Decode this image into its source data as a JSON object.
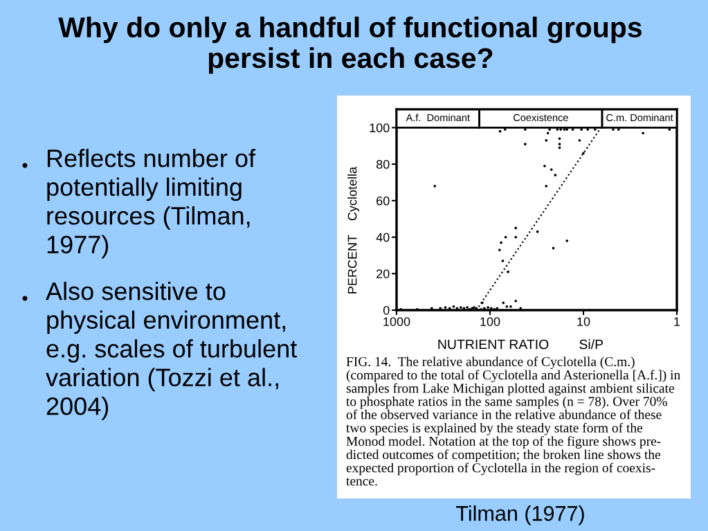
{
  "chart_data": {
    "type": "scatter",
    "title": "Why do only a handful of functional groups\npersist in each case?",
    "xlabel": "NUTRIENT RATIO        Si/P",
    "ylabel": "PERCENT    Cyclotella",
    "log": "x",
    "xlim": [
      1000,
      1
    ],
    "xticks": [
      1000,
      100,
      10,
      1
    ],
    "ylim": [
      0,
      110
    ],
    "yticks": [
      0,
      20,
      40,
      60,
      80,
      100
    ],
    "grid": false,
    "series": [
      {
        "color": "#000000",
        "marker": "circle",
        "x": [
          900,
          600,
          420,
          340,
          300,
          270,
          245,
          225,
          205,
          190,
          175,
          165,
          155,
          148,
          140,
          125,
          115,
          105,
          97,
          90,
          84,
          121,
          72,
          66,
          60,
          53,
          47,
          390,
          53,
          68,
          53,
          76,
          79,
          73,
          64,
          31,
          15,
          21,
          26,
          22,
          20,
          25,
          42,
          25,
          24,
          18,
          18,
          18,
          11,
          10,
          78,
          69,
          42,
          23,
          19,
          17.5,
          16,
          15,
          13,
          10.5,
          9,
          7.5,
          4.8,
          4.2,
          2.3,
          1.2
        ],
        "values": [
          0.5,
          0.5,
          1,
          1,
          1.5,
          1,
          2,
          1,
          1.5,
          1,
          1.5,
          0.5,
          1,
          1.5,
          1,
          0.5,
          1,
          1.5,
          1,
          0.5,
          1,
          4,
          4,
          2,
          2,
          5,
          1,
          68,
          45,
          40,
          40,
          37,
          33,
          27,
          21,
          43,
          38,
          34,
          79,
          77,
          74,
          68,
          91,
          93,
          97,
          94,
          91,
          89,
          93,
          86,
          98,
          99,
          99,
          99,
          99,
          99,
          99,
          99,
          99,
          99,
          99,
          99,
          99,
          99,
          97,
          99
        ]
      },
      {
        "type": "line",
        "color": "#000000",
        "line_style": "dotted",
        "x": [
          140,
          6.5
        ],
        "values": [
          0,
          100
        ]
      }
    ],
    "bands": [
      {
        "axis": "x",
        "from": 1000,
        "to": 130,
        "label": "A.f.  Dominant",
        "color": "#ffffff"
      },
      {
        "axis": "x",
        "from": 130,
        "to": 6.3,
        "label": "Coexistence",
        "color": "#ffffff"
      },
      {
        "axis": "x",
        "from": 6.3,
        "to": 1,
        "label": "C.m. Dominant",
        "color": "#ffffff"
      }
    ],
    "annotations": [
      "Reflects number of\npotentially limiting\nresources (Tilman,\n1977)",
      "Also sensitive to\nphysical environment,\ne.g. scales of turbulent\nvariation (Tozzi et al.,\n2004)",
      "FIG. 14.  The relative abundance of Cyclotella (C.m.)\n(compared to the total of Cyclotella and Asterionella [A.f.]) in\nsamples from Lake Michigan plotted against ambient silicate\nto phosphate ratios in the same samples (n = 78). Over 70%\nof the observed variance in the relative abundance of these\ntwo species is explained by the steady state form of the\nMonod model. Notation at the top of the figure shows pre-\ndicted outcomes of competition; the broken line shows the\nexpected proportion of Cyclotella in the region of coexis-\ntence.",
      "Tilman (1977)"
    ]
  }
}
